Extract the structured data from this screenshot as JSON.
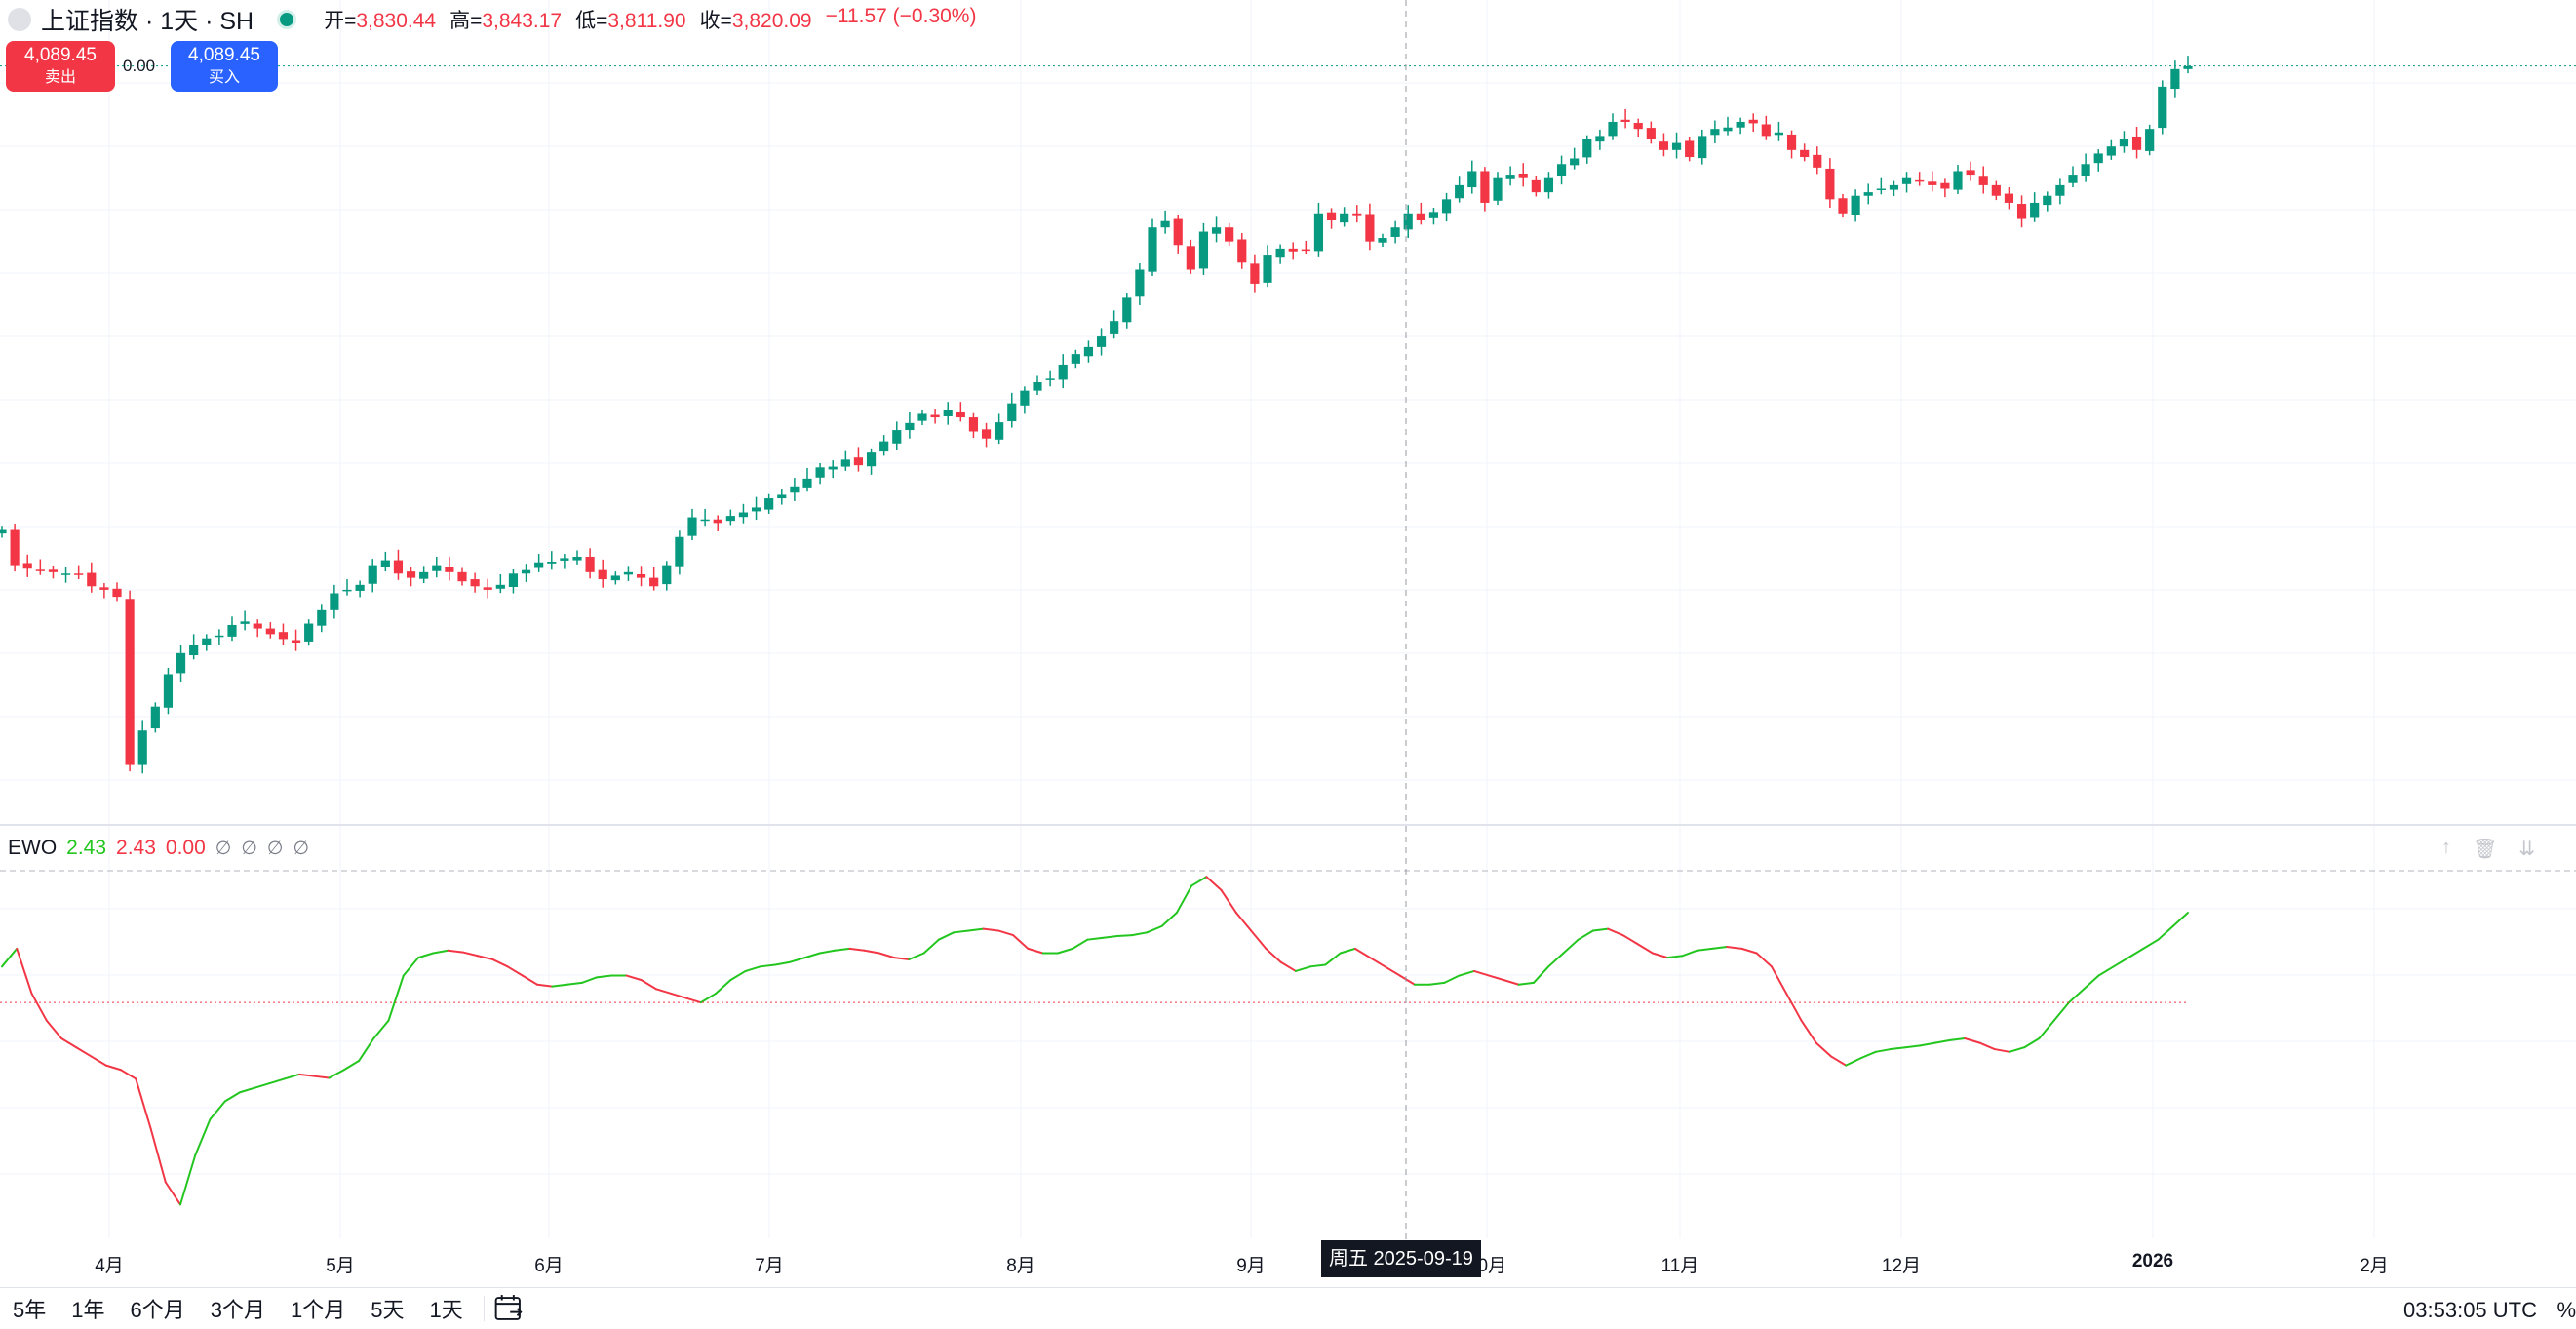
{
  "header": {
    "symbol_title": "上证指数 · 1天 · SH",
    "open_label": "开=",
    "open_value": "3,830.44",
    "high_label": "高=",
    "high_value": "3,843.17",
    "low_label": "低=",
    "low_value": "3,811.90",
    "close_label": "收=",
    "close_value": "3,820.09",
    "change_value": "−11.57 (−0.30%)"
  },
  "trade": {
    "sell_price": "4,089.45",
    "sell_label": "卖出",
    "spread": "0.00",
    "buy_price": "4,089.45",
    "buy_label": "买入"
  },
  "indicator": {
    "name": "EWO",
    "value1": "2.43",
    "value2": "2.43",
    "value3": "0.00",
    "nulls": [
      "∅",
      "∅",
      "∅",
      "∅"
    ]
  },
  "x_axis": {
    "labels": [
      "4月",
      "5月",
      "6月",
      "7月",
      "8月",
      "9月",
      "10月",
      "11月",
      "12月",
      "2026",
      "2月"
    ],
    "bold_label": "2026"
  },
  "crosshair": {
    "date_label": "周五 2025-09-19"
  },
  "bottom_bar": {
    "ranges": [
      "5年",
      "1年",
      "6个月",
      "3个月",
      "1个月",
      "5天",
      "1天"
    ],
    "time": "03:53:05 UTC",
    "percent_toggle": "%"
  },
  "colors": {
    "up": "#089981",
    "down": "#f23645",
    "ewo_up": "#22c61e",
    "ewo_down": "#f23645",
    "sell": "#f23645",
    "buy": "#2962ff"
  },
  "chart_data": [
    {
      "type": "candlestick",
      "title": "上证指数 · 1天 · SH",
      "last_price": 4089.45,
      "price_range_estimate": [
        3040,
        4100
      ],
      "x_start_date": "2025-03-17",
      "x_end_date": "2026-01-07",
      "candles_close_estimate": [
        3430,
        3380,
        3375,
        3372,
        3370,
        3368,
        3366,
        3350,
        3345,
        3335,
        3096,
        3145,
        3179,
        3225,
        3255,
        3267,
        3276,
        3280,
        3295,
        3300,
        3290,
        3282,
        3275,
        3270,
        3297,
        3316,
        3340,
        3345,
        3352,
        3380,
        3387,
        3368,
        3362,
        3370,
        3380,
        3370,
        3357,
        3350,
        3345,
        3352,
        3368,
        3373,
        3384,
        3385,
        3390,
        3392,
        3370,
        3360,
        3365,
        3370,
        3362,
        3350,
        3380,
        3420,
        3448,
        3445,
        3440,
        3450,
        3455,
        3462,
        3475,
        3480,
        3492,
        3503,
        3519,
        3520,
        3530,
        3522,
        3540,
        3556,
        3572,
        3582,
        3595,
        3590,
        3600,
        3590,
        3570,
        3560,
        3583,
        3610,
        3628,
        3640,
        3645,
        3665,
        3680,
        3690,
        3705,
        3727,
        3760,
        3800,
        3860,
        3869,
        3835,
        3800,
        3854,
        3860,
        3840,
        3810,
        3780,
        3820,
        3830,
        3826,
        3828,
        3880,
        3870,
        3880,
        3876,
        3840,
        3845,
        3860,
        3880,
        3870,
        3882,
        3900,
        3920,
        3940,
        3895,
        3930,
        3935,
        3930,
        3910,
        3930,
        3950,
        3958,
        3985,
        3990,
        4010,
        4010,
        4000,
        3985,
        3970,
        3980,
        3960,
        3990,
        4000,
        4002,
        4010,
        4008,
        3990,
        3995,
        3970,
        3960,
        3945,
        3900,
        3880,
        3905,
        3910,
        3915,
        3920,
        3930,
        3925,
        3920,
        3915,
        3940,
        3935,
        3920,
        3905,
        3895,
        3872,
        3895,
        3905,
        3920,
        3935,
        3950,
        3965,
        3975,
        3985,
        3970,
        4000,
        4060,
        4085,
        4089
      ]
    },
    {
      "type": "line",
      "title": "EWO",
      "zero_line": 0,
      "series": [
        {
          "name": "EWO",
          "values": [
            40,
            60,
            10,
            -20,
            -40,
            -50,
            -60,
            -70,
            -75,
            -85,
            -140,
            -200,
            -225,
            -170,
            -130,
            -110,
            -100,
            -95,
            -90,
            -85,
            -80,
            -82,
            -84,
            -75,
            -65,
            -40,
            -20,
            30,
            50,
            55,
            58,
            56,
            52,
            48,
            40,
            30,
            20,
            18,
            20,
            22,
            28,
            30,
            30,
            25,
            15,
            10,
            5,
            0,
            10,
            25,
            35,
            40,
            42,
            45,
            50,
            55,
            58,
            60,
            58,
            55,
            50,
            48,
            55,
            70,
            78,
            80,
            82,
            80,
            75,
            60,
            55,
            55,
            60,
            70,
            72,
            74,
            75,
            78,
            85,
            100,
            130,
            140,
            125,
            100,
            80,
            60,
            45,
            35,
            40,
            42,
            55,
            60,
            50,
            40,
            30,
            20,
            20,
            22,
            30,
            35,
            30,
            25,
            20,
            22,
            40,
            55,
            70,
            80,
            82,
            75,
            65,
            55,
            50,
            52,
            58,
            60,
            62,
            60,
            55,
            40,
            10,
            -20,
            -45,
            -60,
            -70,
            -62,
            -55,
            -52,
            -50,
            -48,
            -45,
            -42,
            -40,
            -45,
            -52,
            -55,
            -50,
            -40,
            -20,
            0,
            15,
            30,
            40,
            50,
            60,
            70,
            85,
            100
          ]
        }
      ]
    }
  ]
}
